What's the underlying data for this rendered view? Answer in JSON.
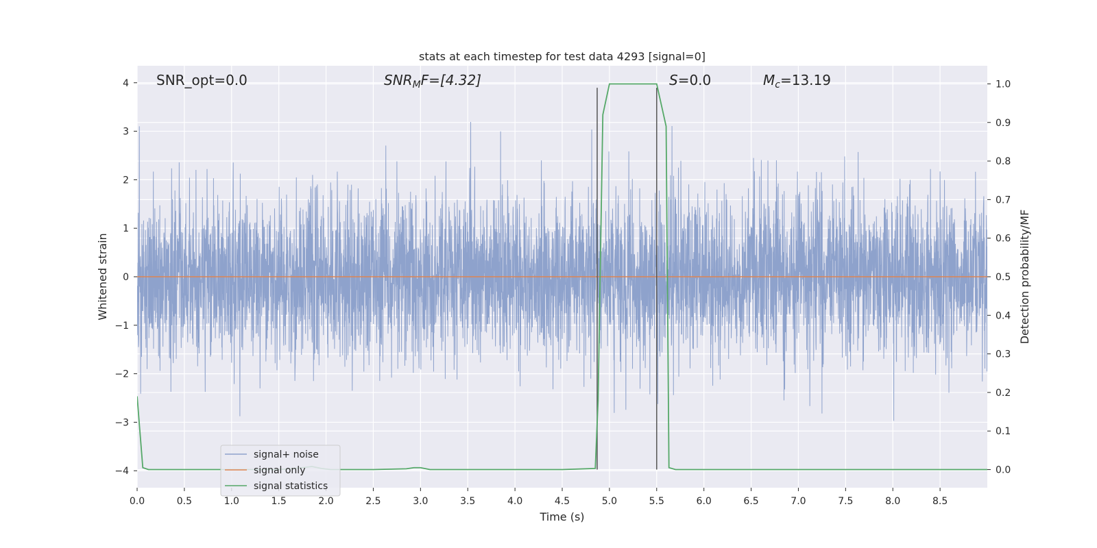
{
  "chart_data": {
    "type": "line",
    "title": "stats at each timestep for test data 4293 [signal=0]",
    "xlabel": "Time (s)",
    "ylabel": "Whitened strain",
    "y2label": "Detection probability/MF",
    "xlim": [
      0.0,
      9.0
    ],
    "ylim": [
      -4.35,
      4.35
    ],
    "y2lim": [
      -0.047,
      1.047
    ],
    "xticks": [
      "0.0",
      "0.5",
      "1.0",
      "1.5",
      "2.0",
      "2.5",
      "3.0",
      "3.5",
      "4.0",
      "4.5",
      "5.0",
      "5.5",
      "6.0",
      "6.5",
      "7.0",
      "7.5",
      "8.0",
      "8.5"
    ],
    "yticks": [
      "4",
      "3",
      "2",
      "1",
      "0",
      "−1",
      "−2",
      "−3",
      "−4"
    ],
    "y2ticks": [
      "1.0",
      "0.9",
      "0.8",
      "0.7",
      "0.6",
      "0.5",
      "0.4",
      "0.3",
      "0.2",
      "0.1",
      "0.0"
    ],
    "grid": true,
    "legend_position": "lower-left",
    "colors": {
      "background": "#eaeaf2",
      "grid": "#ffffff",
      "noise": "#8ea2cc",
      "signal": "#dd8452",
      "stats": "#55a868",
      "vline": "#555555"
    },
    "annotations": {
      "snr_opt": "SNR_opt=0.0",
      "snr_mf_base": "SNR",
      "snr_mf_sub": "M",
      "snr_mf_rest": "F=[4.32]",
      "s_var": "S",
      "s_rest": "=0.0",
      "mc_base": "M",
      "mc_sub": "c",
      "mc_rest": "=13.19"
    },
    "vlines": [
      4.87,
      5.5
    ],
    "series": [
      {
        "name": "signal+ noise",
        "axis": "left",
        "sample_rate": 512,
        "duration": 9.0,
        "envelope": {
          "typical_range": [
            -1.6,
            1.6
          ],
          "spike_max": 3.35,
          "spike_min": -4.0
        }
      },
      {
        "name": "signal only",
        "axis": "left",
        "x": [
          0.0,
          9.0
        ],
        "y": [
          0.0,
          0.0
        ]
      },
      {
        "name": "signal statistics",
        "axis": "right",
        "x": [
          0.0,
          0.06,
          0.12,
          0.5,
          1.0,
          1.5,
          1.75,
          1.85,
          1.95,
          2.05,
          2.5,
          2.85,
          2.93,
          3.0,
          3.1,
          3.5,
          4.0,
          4.5,
          4.85,
          4.88,
          4.93,
          5.0,
          5.5,
          5.6,
          5.63,
          5.7,
          6.0,
          7.0,
          8.0,
          9.0
        ],
        "y": [
          0.19,
          0.005,
          0.0,
          0.0,
          0.0,
          0.0,
          0.005,
          0.008,
          0.003,
          0.0,
          0.0,
          0.002,
          0.005,
          0.005,
          0.0,
          0.0,
          0.0,
          0.0,
          0.003,
          0.18,
          0.92,
          1.0,
          1.0,
          0.89,
          0.005,
          0.0,
          0.0,
          0.0,
          0.0,
          0.0
        ]
      }
    ],
    "legend": [
      "signal+ noise",
      "signal only",
      "signal statistics"
    ]
  }
}
